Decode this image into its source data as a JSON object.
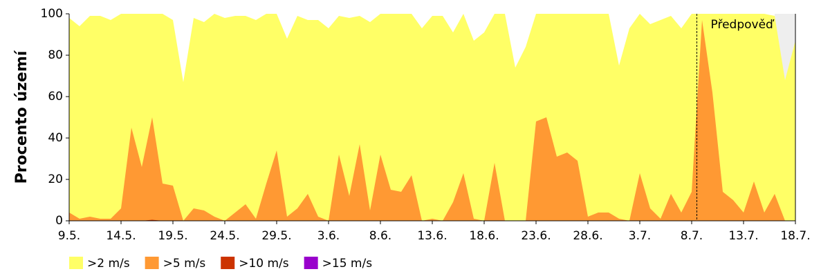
{
  "chart_data": {
    "type": "area",
    "y_label": "Procento území",
    "categories": [
      "9.5.",
      null,
      null,
      null,
      null,
      "14.5.",
      null,
      null,
      null,
      null,
      "19.5.",
      null,
      null,
      null,
      null,
      "24.5.",
      null,
      null,
      null,
      null,
      "29.5.",
      null,
      null,
      null,
      null,
      "3.6.",
      null,
      null,
      null,
      null,
      "8.6.",
      null,
      null,
      null,
      null,
      "13.6.",
      null,
      null,
      null,
      null,
      "18.6.",
      null,
      null,
      null,
      null,
      "23.6.",
      null,
      null,
      null,
      null,
      "28.6.",
      null,
      null,
      null,
      null,
      "3.7.",
      null,
      null,
      null,
      null,
      "8.7.",
      null,
      null,
      null,
      null,
      "13.7.",
      null,
      null,
      null,
      null,
      "18.7."
    ],
    "series": [
      {
        "name": ">2 m/s",
        "color": "#ffff66",
        "values": [
          98,
          94,
          99,
          99,
          97,
          100,
          100,
          100,
          100,
          100,
          97,
          67,
          98,
          96,
          100,
          98,
          99,
          99,
          97,
          100,
          100,
          88,
          99,
          97,
          97,
          93,
          99,
          98,
          99,
          96,
          100,
          100,
          100,
          100,
          93,
          99,
          99,
          91,
          100,
          87,
          91,
          100,
          100,
          74,
          84,
          100,
          100,
          100,
          100,
          100,
          100,
          100,
          100,
          75,
          93,
          100,
          95,
          97,
          99,
          93,
          100,
          100,
          100,
          100,
          100,
          100,
          100,
          100,
          99,
          68,
          87
        ]
      },
      {
        "name": ">5 m/s",
        "color": "#ff9933",
        "values": [
          4,
          1,
          2,
          1,
          1,
          6,
          45,
          26,
          50,
          18,
          17,
          0,
          6,
          5,
          2,
          0,
          4,
          8,
          1,
          18,
          34,
          2,
          6,
          13,
          2,
          0,
          32,
          12,
          37,
          5,
          32,
          15,
          14,
          22,
          0,
          1,
          0,
          9,
          23,
          1,
          0,
          28,
          0,
          0,
          0,
          48,
          50,
          31,
          33,
          29,
          2,
          4,
          4,
          1,
          0,
          23,
          6,
          1,
          13,
          4,
          14,
          97,
          62,
          14,
          10,
          4,
          19,
          4,
          13,
          0,
          0
        ]
      },
      {
        "name": ">10 m/s",
        "color": "#cc3300",
        "values": [
          0,
          0,
          0,
          0,
          0,
          0,
          0,
          0,
          0.5,
          0,
          0,
          0,
          0,
          0,
          0,
          0,
          0,
          0,
          0,
          0,
          0,
          0,
          0,
          0,
          0,
          0,
          0,
          0,
          0,
          0,
          0,
          0,
          0,
          0,
          0,
          0,
          0,
          0,
          0,
          0,
          0,
          0,
          0,
          0,
          0,
          0,
          0,
          0,
          0,
          0,
          0,
          0,
          0,
          0,
          0,
          0,
          0,
          0,
          0,
          0,
          0,
          0,
          0,
          0,
          0,
          0,
          0,
          0,
          0,
          0,
          0
        ]
      },
      {
        "name": ">15 m/s",
        "color": "#9900cc",
        "values": [
          0,
          0,
          0,
          0,
          0,
          0,
          0,
          0,
          0,
          0,
          0,
          0,
          0,
          0,
          0,
          0,
          0,
          0,
          0,
          0,
          0,
          0,
          0,
          0,
          0,
          0,
          0,
          0,
          0,
          0,
          0,
          0,
          0,
          0,
          0,
          0,
          0,
          0,
          0,
          0,
          0,
          0,
          0,
          0,
          0,
          0,
          0,
          0,
          0,
          0,
          0,
          0,
          0,
          0,
          0,
          0,
          0,
          0,
          0,
          0,
          0,
          0,
          0,
          0,
          0,
          0,
          0,
          0,
          0,
          0,
          0
        ]
      }
    ],
    "ylim": [
      0,
      100
    ],
    "yticks": [
      0,
      20,
      40,
      60,
      80,
      100
    ],
    "annotation": {
      "text": "Předpověď",
      "x": 60.5
    }
  }
}
